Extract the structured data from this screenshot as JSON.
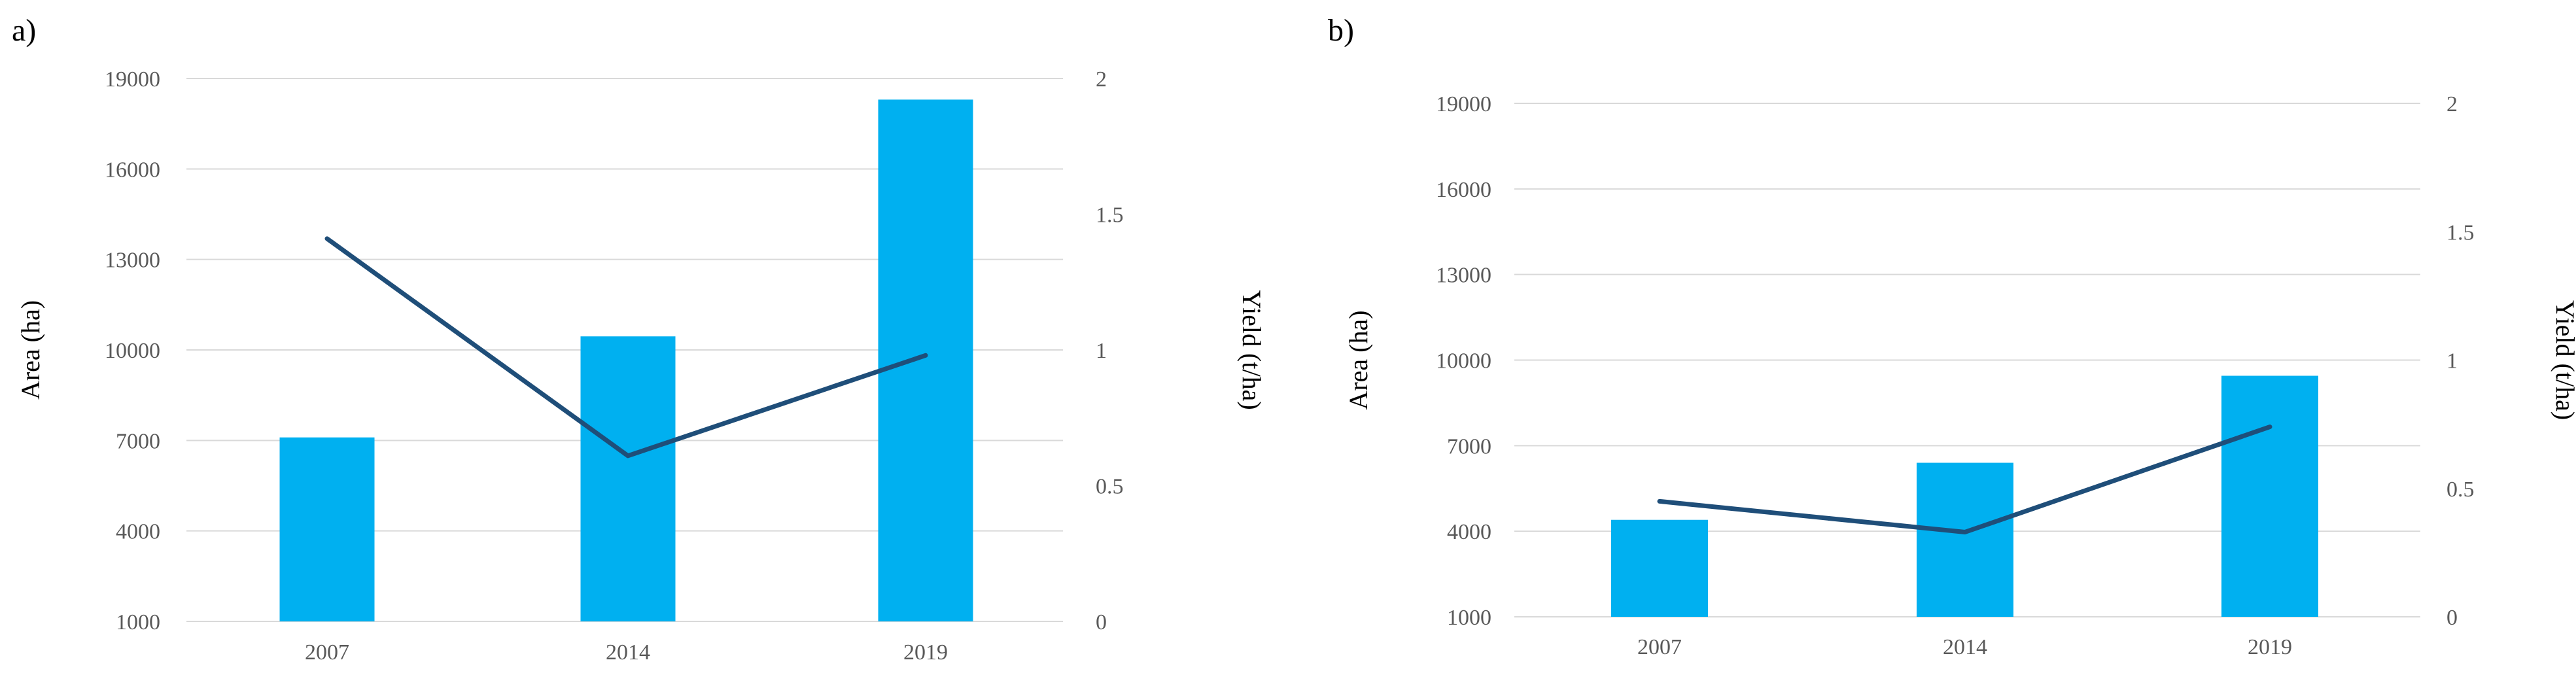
{
  "colors": {
    "bar": "#00b0f0",
    "line": "#1f4e79",
    "grid": "#d9d9d9"
  },
  "chart_data": [
    {
      "panel": "a)",
      "type": "bar",
      "categories": [
        "2007",
        "2014",
        "2019"
      ],
      "series": [
        {
          "kind": "bar",
          "axis": "left",
          "values": [
            7100,
            10450,
            18300
          ]
        },
        {
          "kind": "line",
          "axis": "right",
          "values": [
            1.41,
            0.61,
            0.98
          ]
        }
      ],
      "ylabel": "Area  (ha)",
      "y2label": "Yield (t/ha)",
      "yticks": [
        "1000",
        "4000",
        "7000",
        "10000",
        "13000",
        "16000",
        "19000"
      ],
      "y2ticks": [
        "0",
        "0.5",
        "1",
        "1.5",
        "2"
      ],
      "ylim": [
        1000,
        19000
      ],
      "y2lim": [
        0,
        2
      ],
      "grid": true
    },
    {
      "panel": "b)",
      "type": "bar",
      "categories": [
        "2007",
        "2014",
        "2019"
      ],
      "series": [
        {
          "kind": "bar",
          "axis": "left",
          "values": [
            4400,
            6400,
            9450
          ]
        },
        {
          "kind": "line",
          "axis": "right",
          "values": [
            0.45,
            0.33,
            0.74
          ]
        }
      ],
      "ylabel": "Area (ha)",
      "y2label": "Yield (t/ha)",
      "yticks": [
        "1000",
        "4000",
        "7000",
        "10000",
        "13000",
        "16000",
        "19000"
      ],
      "y2ticks": [
        "0",
        "0.5",
        "1",
        "1.5",
        "2"
      ],
      "ylim": [
        1000,
        19000
      ],
      "y2lim": [
        0,
        2
      ],
      "grid": true
    }
  ]
}
